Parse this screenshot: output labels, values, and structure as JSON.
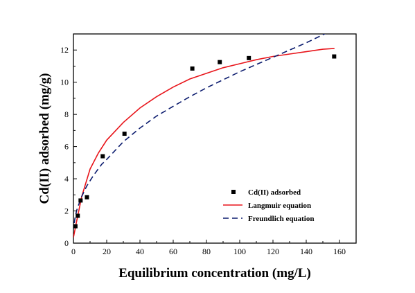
{
  "chart_data": {
    "type": "scatter",
    "xlabel": "Equilibrium concentration (mg/L)",
    "ylabel": "Cd(II) adsorbed (mg/g)",
    "xlim": [
      0,
      170
    ],
    "ylim": [
      0,
      13
    ],
    "x_ticks": [
      0,
      20,
      40,
      60,
      80,
      100,
      120,
      140,
      160
    ],
    "y_ticks": [
      0,
      2,
      4,
      6,
      8,
      10,
      12
    ],
    "grid": false,
    "legend_position": "lower-right",
    "series": [
      {
        "name": "Cd(II) adsorbed",
        "kind": "scatter",
        "marker": "square",
        "color": "#000000",
        "x": [
          1.2,
          2.6,
          4.3,
          8.1,
          17.6,
          30.7,
          71.5,
          88.0,
          105.5,
          156.8
        ],
        "y": [
          1.05,
          1.7,
          2.65,
          2.85,
          5.4,
          6.8,
          10.85,
          11.25,
          11.5,
          11.6
        ]
      },
      {
        "name": "Langmuir equation",
        "kind": "line",
        "style": "solid",
        "color": "#e8141a",
        "x": [
          0,
          2,
          5,
          10,
          15,
          20,
          30,
          40,
          50,
          60,
          70,
          80,
          90,
          100,
          110,
          120,
          130,
          140,
          150,
          157
        ],
        "y": [
          0.35,
          1.4,
          2.9,
          4.6,
          5.6,
          6.4,
          7.5,
          8.4,
          9.1,
          9.7,
          10.2,
          10.55,
          10.9,
          11.15,
          11.4,
          11.6,
          11.75,
          11.9,
          12.05,
          12.1
        ]
      },
      {
        "name": "Freundlich equation",
        "kind": "line",
        "style": "dashed",
        "color": "#0b1b6e",
        "x": [
          0.5,
          1,
          2,
          3,
          5,
          8,
          12,
          17,
          20,
          30,
          40,
          50,
          60,
          70,
          80,
          90,
          100,
          110,
          120,
          130,
          140,
          150,
          157
        ],
        "y": [
          1.25,
          1.6,
          2.05,
          2.35,
          2.9,
          3.55,
          4.2,
          4.9,
          5.2,
          6.3,
          7.15,
          7.9,
          8.5,
          9.1,
          9.65,
          10.15,
          10.65,
          11.1,
          11.55,
          12.0,
          12.45,
          12.95,
          13.3
        ]
      }
    ]
  }
}
